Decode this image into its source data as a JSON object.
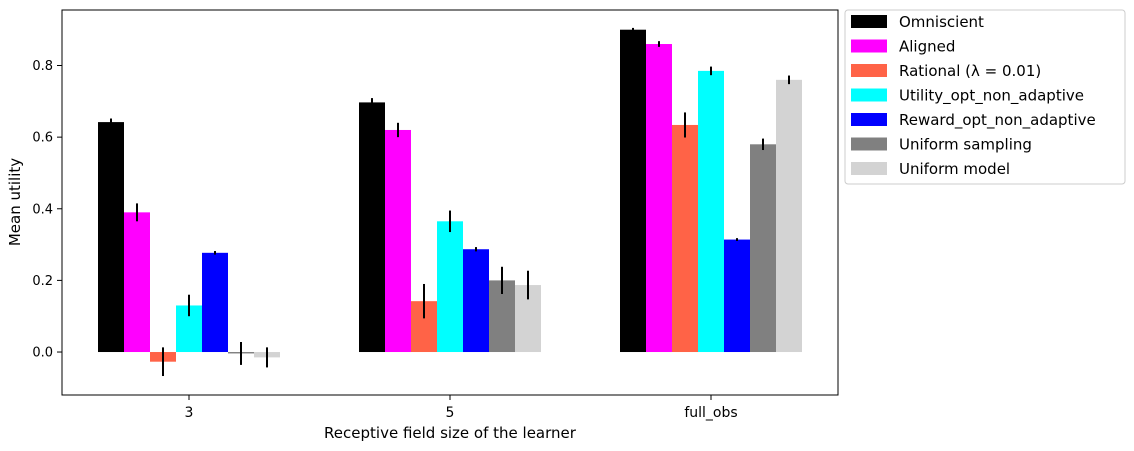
{
  "chart_data": {
    "type": "bar",
    "title": "",
    "xlabel": "Receptive field size of the learner",
    "ylabel": "Mean utility",
    "categories": [
      "3",
      "5",
      "full_obs"
    ],
    "ylim": [
      -0.12,
      0.955
    ],
    "yticks": [
      "0.0",
      "0.2",
      "0.4",
      "0.6",
      "0.8"
    ],
    "grid": false,
    "legend_position": "outside-right",
    "series": [
      {
        "name": "Omniscient",
        "color": "#000000",
        "values": [
          0.642,
          0.697,
          0.9
        ],
        "errors": [
          0.01,
          0.012,
          0.005
        ]
      },
      {
        "name": "Aligned",
        "color": "#ff00ff",
        "values": [
          0.39,
          0.62,
          0.86
        ],
        "errors": [
          0.025,
          0.02,
          0.008
        ]
      },
      {
        "name": "Rational (λ = 0.01)",
        "color": "#ff6347",
        "values": [
          -0.027,
          0.142,
          0.634
        ],
        "errors": [
          0.04,
          0.048,
          0.035
        ]
      },
      {
        "name": "Utility_opt_non_adaptive",
        "color": "#00ffff",
        "values": [
          0.13,
          0.365,
          0.785
        ],
        "errors": [
          0.03,
          0.03,
          0.012
        ]
      },
      {
        "name": "Reward_opt_non_adaptive",
        "color": "#0000ff",
        "values": [
          0.277,
          0.287,
          0.314
        ],
        "errors": [
          0.005,
          0.006,
          0.004
        ]
      },
      {
        "name": "Uniform sampling",
        "color": "#808080",
        "values": [
          -0.004,
          0.2,
          0.58
        ],
        "errors": [
          0.032,
          0.038,
          0.016
        ]
      },
      {
        "name": "Uniform model",
        "color": "#d3d3d3",
        "values": [
          -0.015,
          0.187,
          0.76
        ],
        "errors": [
          0.028,
          0.04,
          0.012
        ]
      }
    ]
  }
}
